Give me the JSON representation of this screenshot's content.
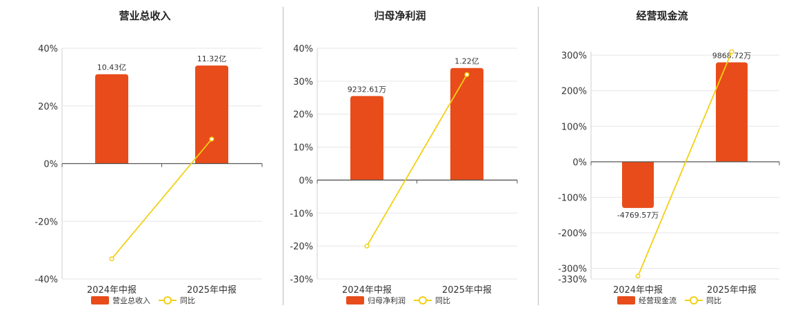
{
  "colors": {
    "bar": "#e84c1a",
    "line": "#f2d012",
    "grid": "#e6e6ea",
    "axis": "#555555"
  },
  "chart_data": [
    {
      "type": "bar",
      "title": "营业总收入",
      "categories": [
        "2024年中报",
        "2025年中报"
      ],
      "series": [
        {
          "name": "营业总收入",
          "kind": "bar",
          "values": [
            31,
            34
          ],
          "labels": [
            "10.43亿",
            "11.32亿"
          ]
        },
        {
          "name": "同比",
          "kind": "line",
          "values": [
            -33,
            8.5
          ]
        }
      ],
      "ylim": [
        -40,
        40
      ],
      "yticks": [
        40,
        20,
        0,
        -20,
        -40
      ],
      "ytick_labels": [
        "40%",
        "20%",
        "0%",
        "-20%",
        "-40%"
      ],
      "grid": true,
      "legend": "bottom"
    },
    {
      "type": "bar",
      "title": "归母净利润",
      "categories": [
        "2024年中报",
        "2025年中报"
      ],
      "series": [
        {
          "name": "归母净利润",
          "kind": "bar",
          "values": [
            25.5,
            34
          ],
          "labels": [
            "9232.61万",
            "1.22亿"
          ]
        },
        {
          "name": "同比",
          "kind": "line",
          "values": [
            -20,
            32
          ]
        }
      ],
      "ylim": [
        -30,
        40
      ],
      "yticks": [
        40,
        30,
        20,
        10,
        0,
        -10,
        -20,
        -30
      ],
      "ytick_labels": [
        "40%",
        "30%",
        "20%",
        "10%",
        "0%",
        "-10%",
        "-20%",
        "-30%"
      ],
      "grid": true,
      "legend": "bottom"
    },
    {
      "type": "bar",
      "title": "经营现金流",
      "categories": [
        "2024年中报",
        "2025年中报"
      ],
      "series": [
        {
          "name": "经营现金流",
          "kind": "bar",
          "values": [
            -130,
            280
          ],
          "labels": [
            "-4769.57万",
            "9868.72万"
          ]
        },
        {
          "name": "同比",
          "kind": "line",
          "values": [
            -322,
            310
          ]
        }
      ],
      "ylim": [
        -330,
        310
      ],
      "yticks": [
        300,
        200,
        100,
        0,
        -100,
        -200,
        -300,
        -330
      ],
      "ytick_labels": [
        "300%",
        "200%",
        "100%",
        "0%",
        "-100%",
        "-200%",
        "-300%",
        "-330%"
      ],
      "grid": true,
      "legend": "bottom"
    }
  ]
}
